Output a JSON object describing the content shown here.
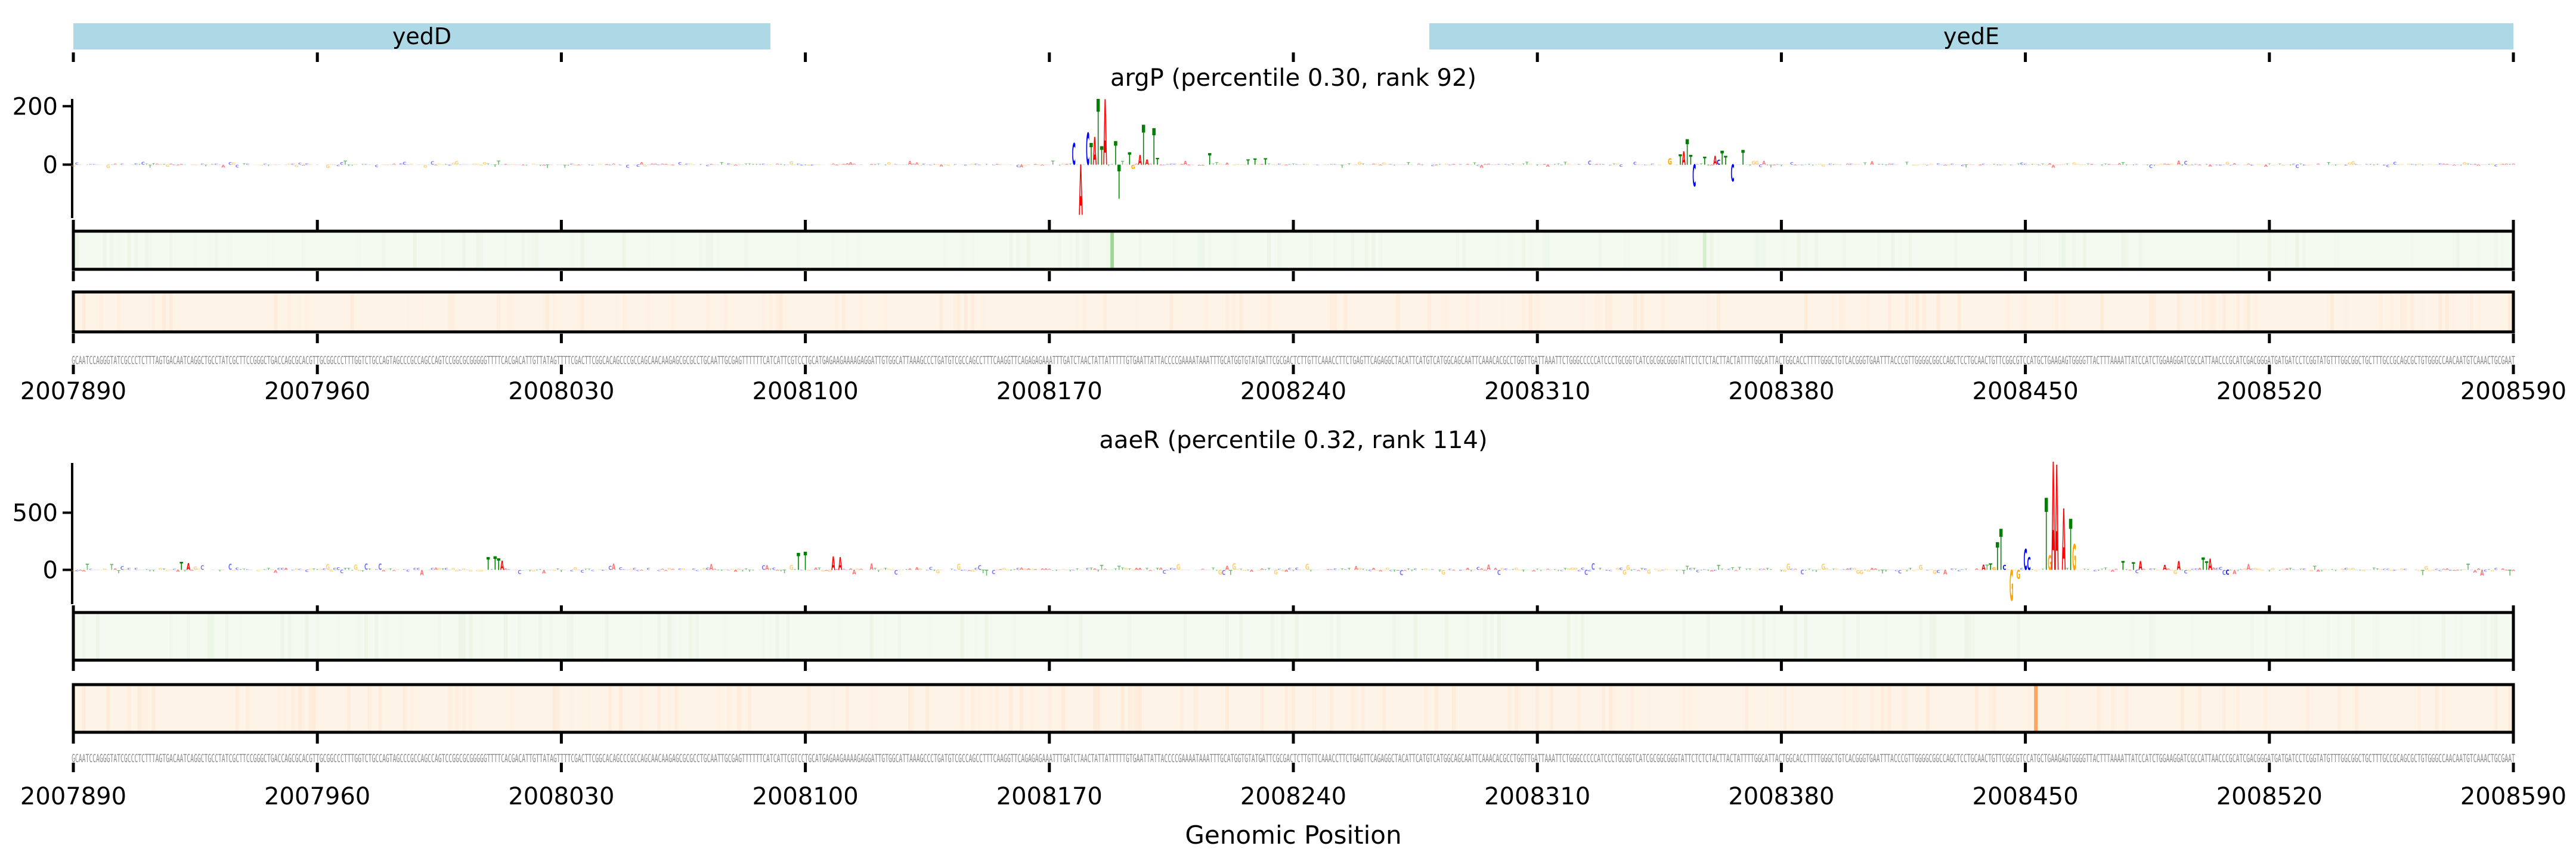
{
  "chart_data": {
    "type": "sequence-logo-tracks",
    "xlabel": "Genomic Position",
    "xlim": [
      2007890,
      2008590
    ],
    "xticks": [
      2007890,
      2007960,
      2008030,
      2008100,
      2008170,
      2008240,
      2008310,
      2008380,
      2008450,
      2008520,
      2008590
    ],
    "genes": [
      {
        "name": "yedD",
        "start": 2007890,
        "end": 2008090
      },
      {
        "name": "yedE",
        "start": 2008279,
        "end": 2008590
      }
    ],
    "sequence": "GCAATCCAGGGTATCGCCCTCTTTAGTGACAATCAGGCTGCCTATCGCTTCCGGGCTGACCAGCGCACGTTGCGGCCCTTTGGTCTGCCAGTAGCCCGCCAGCCAGTCCGGCGCGGGGGTTTTCACGACATTGTTATAGTTTTCGACTTCGGCACAGCCCGCCAGCAACAAGAGCGCGCCTGCAATTGCGAGTTTTTTCATCATTCGTCCTGCATGAGAAGAAAAGAGGATTGTGGCATTAAAGCCCTGATGTCGCCAGCCTTTCAAGGTTCAGAGAGAAATTTGATCTAACTATTATTTTTGTGAATTATTACCCCGAAAATAAATTTGCATGGTGTATGATTCGCGACTCTTGTTCAAACCTTCTGAGTTCAGAGGCTACATTCATGTCATGGCAGCAATTCAAACACGCCTGGTTGATTAAATTCTGGGCCCCCATCCCTGCGGTCATCGCGGCGGGTATTCTCTCTACTTACTATTTTGGCATTACTGGCACCTTTTGGGCTGTCACGGGTGAATTTACCCGTTGGGGCGGCCAGCTCCTGCAACTGTTCGGCGTCCATGCTGAAGAGTGGGGTTACTTTAAAATTATCCATCTGGAAGGATCGCCATTAACCCGCATCGACGGGATGATGATCCTCGGTATGTTTGGCGGCTGCTTTGCCGCAGCGCTGTGGGCCAACAATGTCAAACTGCGAAT",
    "base_colors": {
      "A": "#ff0000",
      "C": "#0000ff",
      "G": "#ffa500",
      "T": "#008000"
    },
    "gene_color": "#add8e6",
    "panels": [
      {
        "title": "argP (percentile 0.30, rank 92)",
        "ylim": [
          -183,
          225
        ],
        "yticks": [
          0,
          200
        ],
        "noise_amplitude": 6,
        "peaks": [
          [
            2008177,
            74,
            "C"
          ],
          [
            2008179,
            -172,
            "A"
          ],
          [
            2008181,
            110,
            "C"
          ],
          [
            2008182,
            74,
            "T"
          ],
          [
            2008183,
            95,
            "A"
          ],
          [
            2008184,
            225,
            "T"
          ],
          [
            2008185,
            64,
            "T"
          ],
          [
            2008186,
            224,
            "A"
          ],
          [
            2008189,
            81,
            "T"
          ],
          [
            2008190,
            -117,
            "T"
          ],
          [
            2008193,
            43,
            "T"
          ],
          [
            2008194,
            -15,
            "G"
          ],
          [
            2008196,
            33,
            "A"
          ],
          [
            2008197,
            137,
            "T"
          ],
          [
            2008198,
            19,
            "A"
          ],
          [
            2008200,
            124,
            "T"
          ],
          [
            2008201,
            24,
            "T"
          ],
          [
            2008216,
            40,
            "T"
          ],
          [
            2008227,
            19,
            "T"
          ],
          [
            2008229,
            21,
            "T"
          ],
          [
            2008232,
            22,
            "T"
          ],
          [
            2008348,
            22,
            "G"
          ],
          [
            2008351,
            36,
            "T"
          ],
          [
            2008352,
            46,
            "A"
          ],
          [
            2008353,
            88,
            "T"
          ],
          [
            2008354,
            33,
            "T"
          ],
          [
            2008355,
            -75,
            "C"
          ],
          [
            2008358,
            28,
            "T"
          ],
          [
            2008361,
            30,
            "A"
          ],
          [
            2008362,
            17,
            "C"
          ],
          [
            2008363,
            48,
            "T"
          ],
          [
            2008364,
            31,
            "T"
          ],
          [
            2008366,
            -58,
            "C"
          ],
          [
            2008369,
            50,
            "T"
          ]
        ],
        "tracks": [
          {
            "kind": "green",
            "fill": "#f3faf0",
            "highlight": "#9fd795",
            "highlights": [
              [
                2008188,
                1.0
              ],
              [
                2008358,
                0.35
              ]
            ]
          },
          {
            "kind": "orange",
            "fill": "#fef3e7",
            "highlight": "#fda460",
            "highlights": []
          }
        ]
      },
      {
        "title": "aaeR (percentile 0.32, rank 114)",
        "ylim": [
          -300,
          935
        ],
        "yticks": [
          0,
          500
        ],
        "noise_amplitude": 25,
        "peaks": [
          [
            2007921,
            70,
            "T"
          ],
          [
            2007923,
            60,
            "A"
          ],
          [
            2008009,
            110,
            "T"
          ],
          [
            2008011,
            119,
            "T"
          ],
          [
            2008012,
            100,
            "T"
          ],
          [
            2008013,
            80,
            "A"
          ],
          [
            2008098,
            150,
            "T"
          ],
          [
            2008100,
            160,
            "T"
          ],
          [
            2008108,
            120,
            "A"
          ],
          [
            2008110,
            110,
            "A"
          ],
          [
            2008438,
            47,
            "A"
          ],
          [
            2008440,
            57,
            "T"
          ],
          [
            2008441,
            22,
            "G"
          ],
          [
            2008442,
            243,
            "T"
          ],
          [
            2008443,
            359,
            "T"
          ],
          [
            2008444,
            43,
            "C"
          ],
          [
            2008446,
            -269,
            "G"
          ],
          [
            2008448,
            -78,
            "G"
          ],
          [
            2008450,
            182,
            "C"
          ],
          [
            2008451,
            113,
            "C"
          ],
          [
            2008456,
            630,
            "T"
          ],
          [
            2008457,
            130,
            "G"
          ],
          [
            2008458,
            946,
            "A"
          ],
          [
            2008459,
            920,
            "A"
          ],
          [
            2008461,
            538,
            "A"
          ],
          [
            2008463,
            446,
            "T"
          ],
          [
            2008464,
            226,
            "G"
          ],
          [
            2008478,
            78,
            "T"
          ],
          [
            2008481,
            69,
            "T"
          ],
          [
            2008483,
            78,
            "A"
          ],
          [
            2008490,
            43,
            "A"
          ],
          [
            2008494,
            78,
            "A"
          ],
          [
            2008501,
            108,
            "T"
          ],
          [
            2008502,
            73,
            "T"
          ],
          [
            2008503,
            99,
            "A"
          ],
          [
            2008508,
            -43,
            "C"
          ]
        ],
        "tracks": [
          {
            "kind": "green",
            "fill": "#f3faf0",
            "highlight": "#9fd795",
            "highlights": []
          },
          {
            "kind": "orange",
            "fill": "#fef3e7",
            "highlight": "#fda460",
            "highlights": [
              [
                2008453,
                1.0
              ]
            ]
          }
        ]
      }
    ]
  }
}
